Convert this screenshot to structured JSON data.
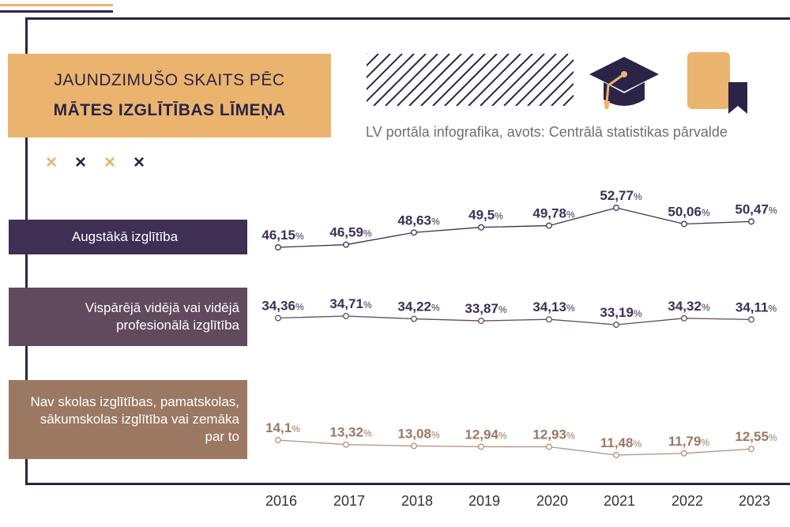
{
  "title": {
    "line1": "JAUNDZIMUŠO SKAITS PĒC",
    "line2": "MĀTES IZGLĪTĪBAS LĪMEŅA"
  },
  "source": "LV portāla infografika, avots: Centrālā statistikas pārvalde",
  "icons": [
    "hatch-pattern",
    "graduation-cap-icon",
    "book-bookmark-icon"
  ],
  "decor_marks": [
    "×",
    "×",
    "×",
    "×"
  ],
  "colors": {
    "dark": "#2b2447",
    "accent": "#ebb46e",
    "higher": "#3e2f55",
    "secondary": "#614a5e",
    "basic": "#9b7862",
    "basic_line": "#b08f78",
    "year_text": "#333333"
  },
  "chart_data": {
    "type": "line",
    "x": [
      "2016",
      "2017",
      "2018",
      "2019",
      "2020",
      "2021",
      "2022",
      "2023"
    ],
    "value_suffix": "%",
    "series": [
      {
        "name": "Augstākā izglītība",
        "values": [
          46.15,
          46.59,
          48.63,
          49.5,
          49.78,
          52.77,
          50.06,
          50.47
        ],
        "labels": [
          "46,15",
          "46,59",
          "48,63",
          "49,5",
          "49,78",
          "52,77",
          "50,06",
          "50,47"
        ]
      },
      {
        "name": "Vispārējā vidējā vai vidējā profesionālā izglītība",
        "values": [
          34.36,
          34.71,
          34.22,
          33.87,
          34.13,
          33.19,
          34.32,
          34.11
        ],
        "labels": [
          "34,36",
          "34,71",
          "34,22",
          "33,87",
          "34,13",
          "33,19",
          "34,32",
          "34,11"
        ]
      },
      {
        "name": "Nav skolas izglītības, pamatskolas, sākumskolas izglītība vai zemāka par to",
        "values": [
          14.1,
          13.32,
          13.08,
          12.94,
          12.93,
          11.48,
          11.79,
          12.55
        ],
        "labels": [
          "14,1",
          "13,32",
          "13,08",
          "12,94",
          "12,93",
          "11,48",
          "11,79",
          "12,55"
        ]
      }
    ]
  }
}
